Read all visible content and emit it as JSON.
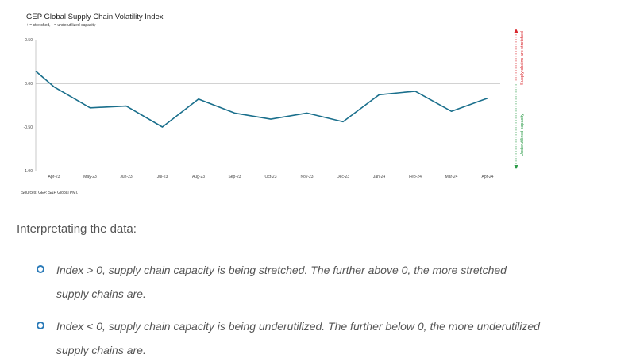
{
  "chart_data": {
    "type": "line",
    "title": "GEP Global Supply Chain Volatility Index",
    "subtitle": "+ = stretched, - = underutilized capacity",
    "source": "Sources: GEP, S&P Global PMI.",
    "categories": [
      "Apr-23",
      "May-23",
      "Jun-23",
      "Jul-23",
      "Aug-23",
      "Sep-23",
      "Oct-23",
      "Nov-23",
      "Dec-23",
      "Jan-24",
      "Feb-24",
      "Mar-24",
      "Apr-24"
    ],
    "y_ticks": [
      "0.50",
      "0.00",
      "-0.50",
      "-1.00"
    ],
    "ylim": [
      -1.0,
      0.5
    ],
    "series": [
      {
        "color": "#1a6f8c",
        "x": [
          "Mar-23",
          "Apr-23",
          "May-23",
          "Jun-23",
          "Jul-23",
          "Aug-23",
          "Sep-23",
          "Oct-23",
          "Nov-23",
          "Dec-23",
          "Jan-24",
          "Feb-24",
          "Mar-24",
          "Apr-24"
        ],
        "values": [
          0.14,
          -0.04,
          -0.28,
          -0.26,
          -0.5,
          -0.18,
          -0.34,
          -0.41,
          -0.34,
          -0.44,
          -0.13,
          -0.09,
          -0.32,
          -0.17
        ]
      }
    ],
    "reference_line": 0,
    "annotations": {
      "upper": "Supply chains are stretched",
      "lower": "Underutilized capacity",
      "upper_color": "#d9262c",
      "lower_color": "#2e9c4a"
    }
  },
  "interpretation": {
    "heading": "Interpretating the data:",
    "bullets": [
      "Index > 0, supply chain capacity is being stretched. The further above 0, the more stretched supply chains are.",
      "Index < 0, supply chain capacity is being underutilized. The further below 0, the more underutilized supply chains are."
    ],
    "bullet_color": "#2a7ab8"
  }
}
